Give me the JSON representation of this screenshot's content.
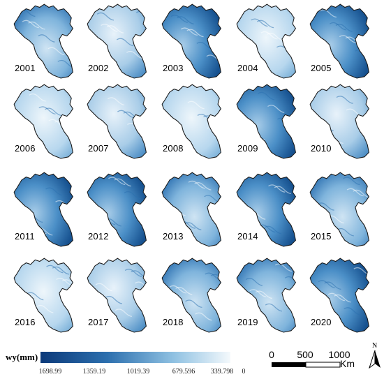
{
  "years": [
    "2001",
    "2002",
    "2003",
    "2004",
    "2005",
    "2006",
    "2007",
    "2008",
    "2009",
    "2010",
    "2011",
    "2012",
    "2013",
    "2014",
    "2015",
    "2016",
    "2017",
    "2018",
    "2019",
    "2020"
  ],
  "legend": {
    "title": "wy(mm)",
    "ticks": [
      "1698.99",
      "1359.19",
      "1019.39",
      "679.596",
      "339.798",
      "0"
    ],
    "colors": {
      "high": "#0c3a7a",
      "mid": "#4f9ccc",
      "low": "#f4f9fc"
    }
  },
  "scale_bar": {
    "labels": [
      "0",
      "500",
      "1000"
    ],
    "unit": "Km"
  },
  "north_arrow": {
    "letter": "N"
  },
  "colors": {
    "outline": "#1a1a1a",
    "dark_blue": "#1d5fa3",
    "light_blue": "#d8e9f6"
  }
}
